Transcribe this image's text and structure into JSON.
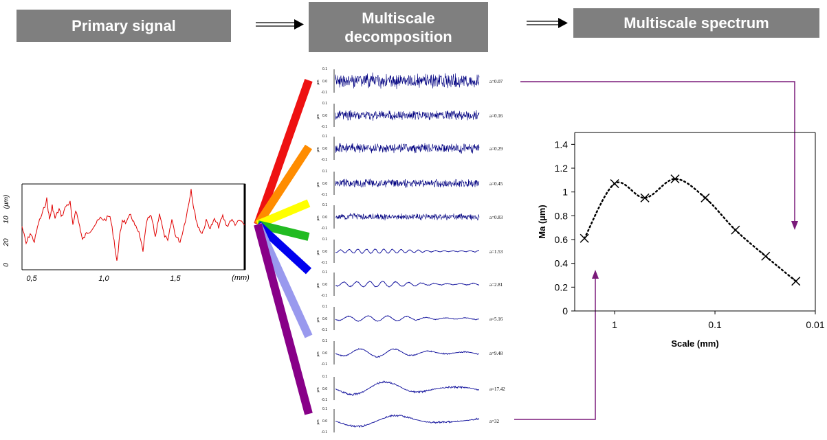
{
  "headers": {
    "primary": "Primary signal",
    "decomposition_line1": "Multiscale",
    "decomposition_line2": "decomposition",
    "spectrum": "Multiscale spectrum"
  },
  "primary_plot": {
    "y_unit": "(µm)",
    "y_ticks": [
      "0",
      "10",
      "20"
    ],
    "x_ticks": [
      "0,5",
      "1,0",
      "1,5"
    ],
    "x_unit": "(mm)"
  },
  "decomposition": {
    "scales": [
      "a=0.07",
      "a=0.16",
      "a=0.29",
      "a=0.45",
      "a=0.83",
      "a=1.53",
      "a=2.81",
      "a=5.16",
      "a=9.48",
      "a=17.42",
      "a=32"
    ],
    "y_unit": "µm",
    "tick_top": "0.1",
    "tick_mid": "0.0",
    "tick_bot": "-0.1"
  },
  "fan_colors": [
    "#ee1111",
    "#ff8c00",
    "#ffff00",
    "#22bb22",
    "#0000ee",
    "#9999ee",
    "#880088"
  ],
  "chart_data": {
    "type": "line",
    "x": [
      2,
      1,
      0.5,
      0.25,
      0.125,
      0.0625,
      0.03125,
      0.015625
    ],
    "values": [
      0.61,
      1.07,
      0.95,
      1.11,
      0.95,
      0.68,
      0.46,
      0.25
    ],
    "xlabel": "Scale (mm)",
    "ylabel": "Ma  (µm)",
    "x_scale": "log",
    "x_reversed": true,
    "xlim": [
      2.5,
      0.01
    ],
    "ylim": [
      0,
      1.5
    ],
    "y_ticks": [
      "0",
      "0.2",
      "0.4",
      "0.6",
      "0.8",
      "1",
      "1.2",
      "1.4"
    ],
    "x_ticks": [
      "1",
      "0.1",
      "0.01"
    ],
    "marker": "x",
    "line_style": "dotted",
    "grid": false
  }
}
